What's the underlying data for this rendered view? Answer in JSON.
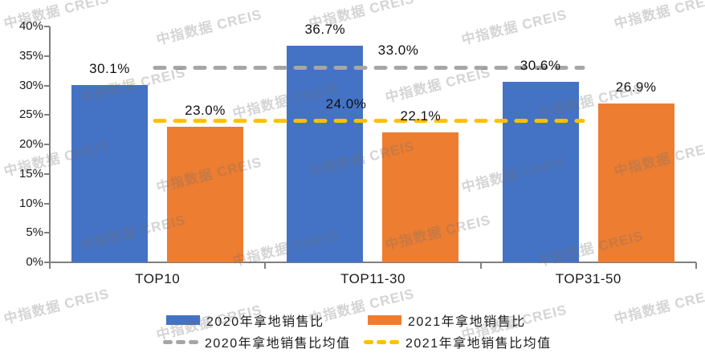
{
  "chart_data": {
    "type": "bar",
    "categories": [
      "TOP10",
      "TOP11-30",
      "TOP31-50"
    ],
    "series": [
      {
        "name": "2020年拿地销售比",
        "color": "#4472C4",
        "values": [
          30.1,
          36.7,
          30.6
        ],
        "data_labels": [
          "30.1%",
          "36.7%",
          "30.6%"
        ]
      },
      {
        "name": "2021年拿地销售比",
        "color": "#ED7D31",
        "values": [
          23.0,
          22.1,
          26.9
        ],
        "data_labels": [
          "23.0%",
          "22.1%",
          "26.9%"
        ]
      }
    ],
    "mean_lines": [
      {
        "name": "2020年拿地销售比均值",
        "color": "#A6A6A6",
        "value": 33.0,
        "label": "33.0%"
      },
      {
        "name": "2021年拿地销售比均值",
        "color": "#FFC000",
        "value": 24.0,
        "label": "24.0%"
      }
    ],
    "y_axis": {
      "min": 0,
      "max": 40,
      "step": 5,
      "tick_labels": [
        "0%",
        "5%",
        "10%",
        "15%",
        "20%",
        "25%",
        "30%",
        "35%",
        "40%"
      ]
    },
    "xlabel": "",
    "ylabel": "",
    "title": "",
    "gridlines": false,
    "legend_position": "bottom"
  },
  "legend": {
    "items": [
      {
        "label": "2020年拿地销售比",
        "swatch": "bar",
        "color": "#4472C4"
      },
      {
        "label": "2021年拿地销售比",
        "swatch": "bar",
        "color": "#ED7D31"
      },
      {
        "label": "2020年拿地销售比均值",
        "swatch": "dash",
        "color": "#A6A6A6"
      },
      {
        "label": "2021年拿地销售比均值",
        "swatch": "dash",
        "color": "#FFC000"
      }
    ]
  },
  "watermark": {
    "text": "中指数据 CREIS"
  },
  "colors": {
    "axis": "#7F7F7F",
    "text": "#1a1a1a"
  }
}
